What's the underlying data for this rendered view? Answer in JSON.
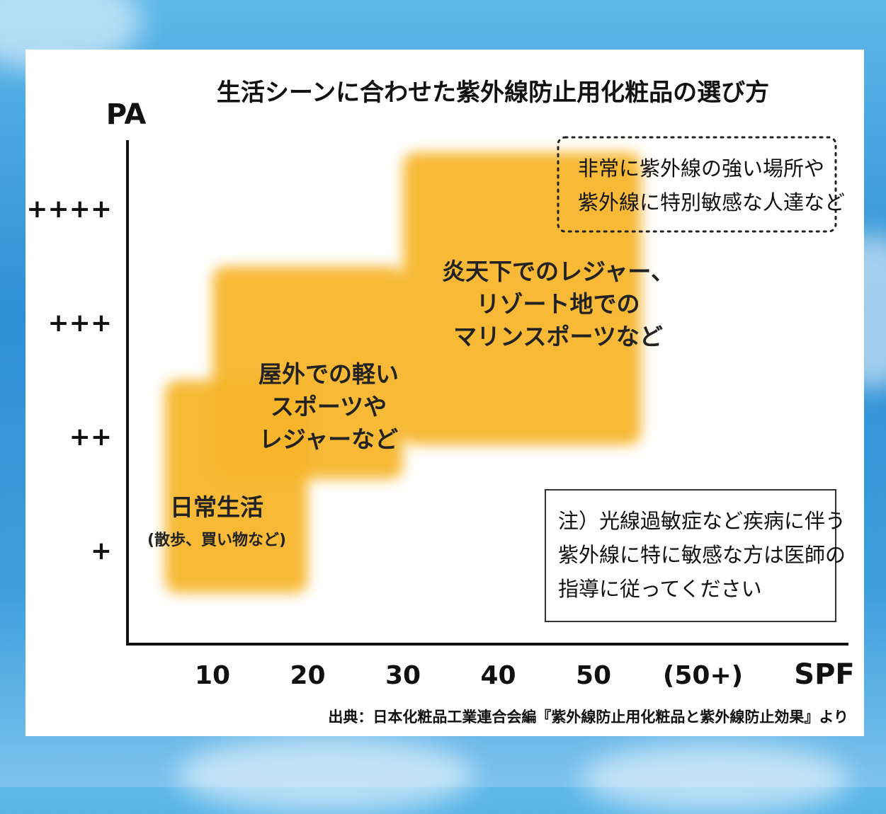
{
  "chart_data": {
    "type": "area",
    "title": "生活シーンに合わせた紫外線防止用化粧品の選び方",
    "ylabel": "PA",
    "xlabel": "SPF",
    "x_ticks": [
      "10",
      "20",
      "30",
      "40",
      "50",
      "(50+)"
    ],
    "y_ticks": [
      "+",
      "++",
      "+++",
      "++++"
    ],
    "regions": [
      {
        "name": "日常生活",
        "sub": "(散歩、買い物など)",
        "spf": [
          5,
          20
        ],
        "pa": [
          1,
          2
        ]
      },
      {
        "name": "屋外での軽い|スポーツや|レジャーなど",
        "spf": [
          10,
          30
        ],
        "pa": [
          2,
          3
        ]
      },
      {
        "name": "炎天下でのレジャー、|リゾート地での|マリンスポーツなど",
        "spf": [
          30,
          55
        ],
        "pa": [
          2.3,
          4
        ]
      }
    ],
    "annotations": [
      {
        "style": "dotted",
        "lines": [
          "非常に紫外線の強い場所や",
          "紫外線に特別敏感な人達など"
        ]
      },
      {
        "style": "solid",
        "lines": [
          "注）光線過敏症など疾病に伴う",
          "紫外線に特に敏感な方は医師の",
          "指導に従ってください"
        ]
      }
    ],
    "source": "出典：日本化粧品工業連合会編『紫外線防止用化粧品と紫外線防止効果』より",
    "grid": false,
    "colors": {
      "region": "#f7b52c",
      "axis": "#111111",
      "background": "#ffffff"
    }
  }
}
